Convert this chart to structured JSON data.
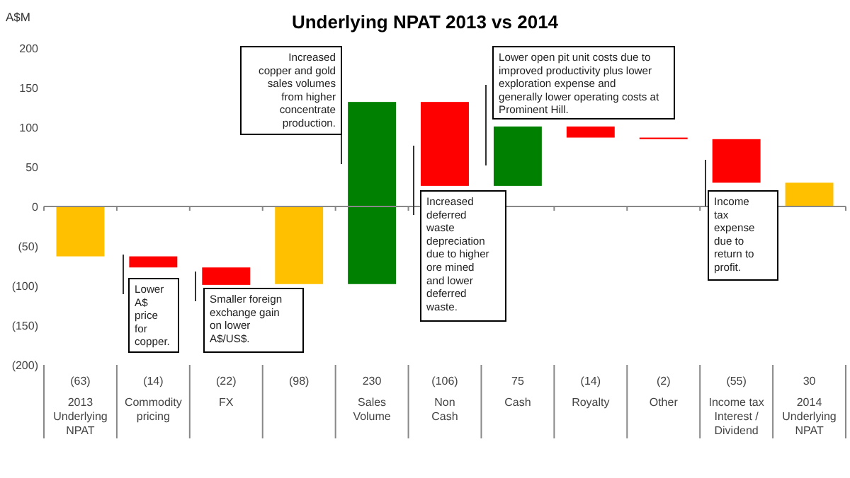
{
  "chart_data": {
    "type": "bar",
    "title": "Underlying NPAT 2013 vs  2014",
    "ylabel": "A$M",
    "categories": [
      "2013\nUnderlying\nNPAT",
      "Commodity\npricing",
      "FX",
      null,
      "Sales\nVolume",
      "Non\nCash",
      "Cash",
      "Royalty",
      "Other",
      "Income tax\nInterest /\nDividend",
      "2014\nUnderlying\nNPAT"
    ],
    "values": [
      -63,
      -14,
      -22,
      -98,
      230,
      -106,
      75,
      -14,
      -2,
      -55,
      30
    ],
    "base": [
      0,
      -63,
      -77,
      0,
      -98,
      132,
      26,
      101,
      87,
      85,
      0
    ],
    "colors": [
      "#ffc000",
      "#ff0000",
      "#ff0000",
      "#ffc000",
      "#008000",
      "#ff0000",
      "#008000",
      "#ff0000",
      "#ff0000",
      "#ff0000",
      "#ffc000"
    ],
    "value_labels": [
      "(63)",
      "(14)",
      "(22)",
      "(98)",
      "230",
      "(106)",
      "75",
      "(14)",
      "(2)",
      "(55)",
      "30"
    ],
    "ylim": [
      -200,
      200
    ],
    "yticks": [
      {
        "value": -200,
        "label": "(200)"
      },
      {
        "value": -150,
        "label": "(150)"
      },
      {
        "value": -100,
        "label": "(100)"
      },
      {
        "value": -50,
        "label": "(50)"
      },
      0,
      50,
      100,
      150,
      200
    ],
    "annotations": [
      "Lower\nA$\nprice\nfor\ncopper.",
      "Smaller foreign\nexchange gain\non lower\nA$/US$.",
      "Increased\ncopper and gold\nsales volumes\nfrom higher\nconcentrate\nproduction.",
      "Increased\ndeferred\nwaste\ndepreciation\ndue to higher\nore mined\nand lower\ndeferred\nwaste.",
      "Lower open pit unit costs due to\nimproved productivity plus lower\nexploration expense and\ngenerally lower operating costs at\nProminent Hill.",
      "Income\ntax\nexpense\ndue to\nreturn to\nprofit."
    ]
  }
}
